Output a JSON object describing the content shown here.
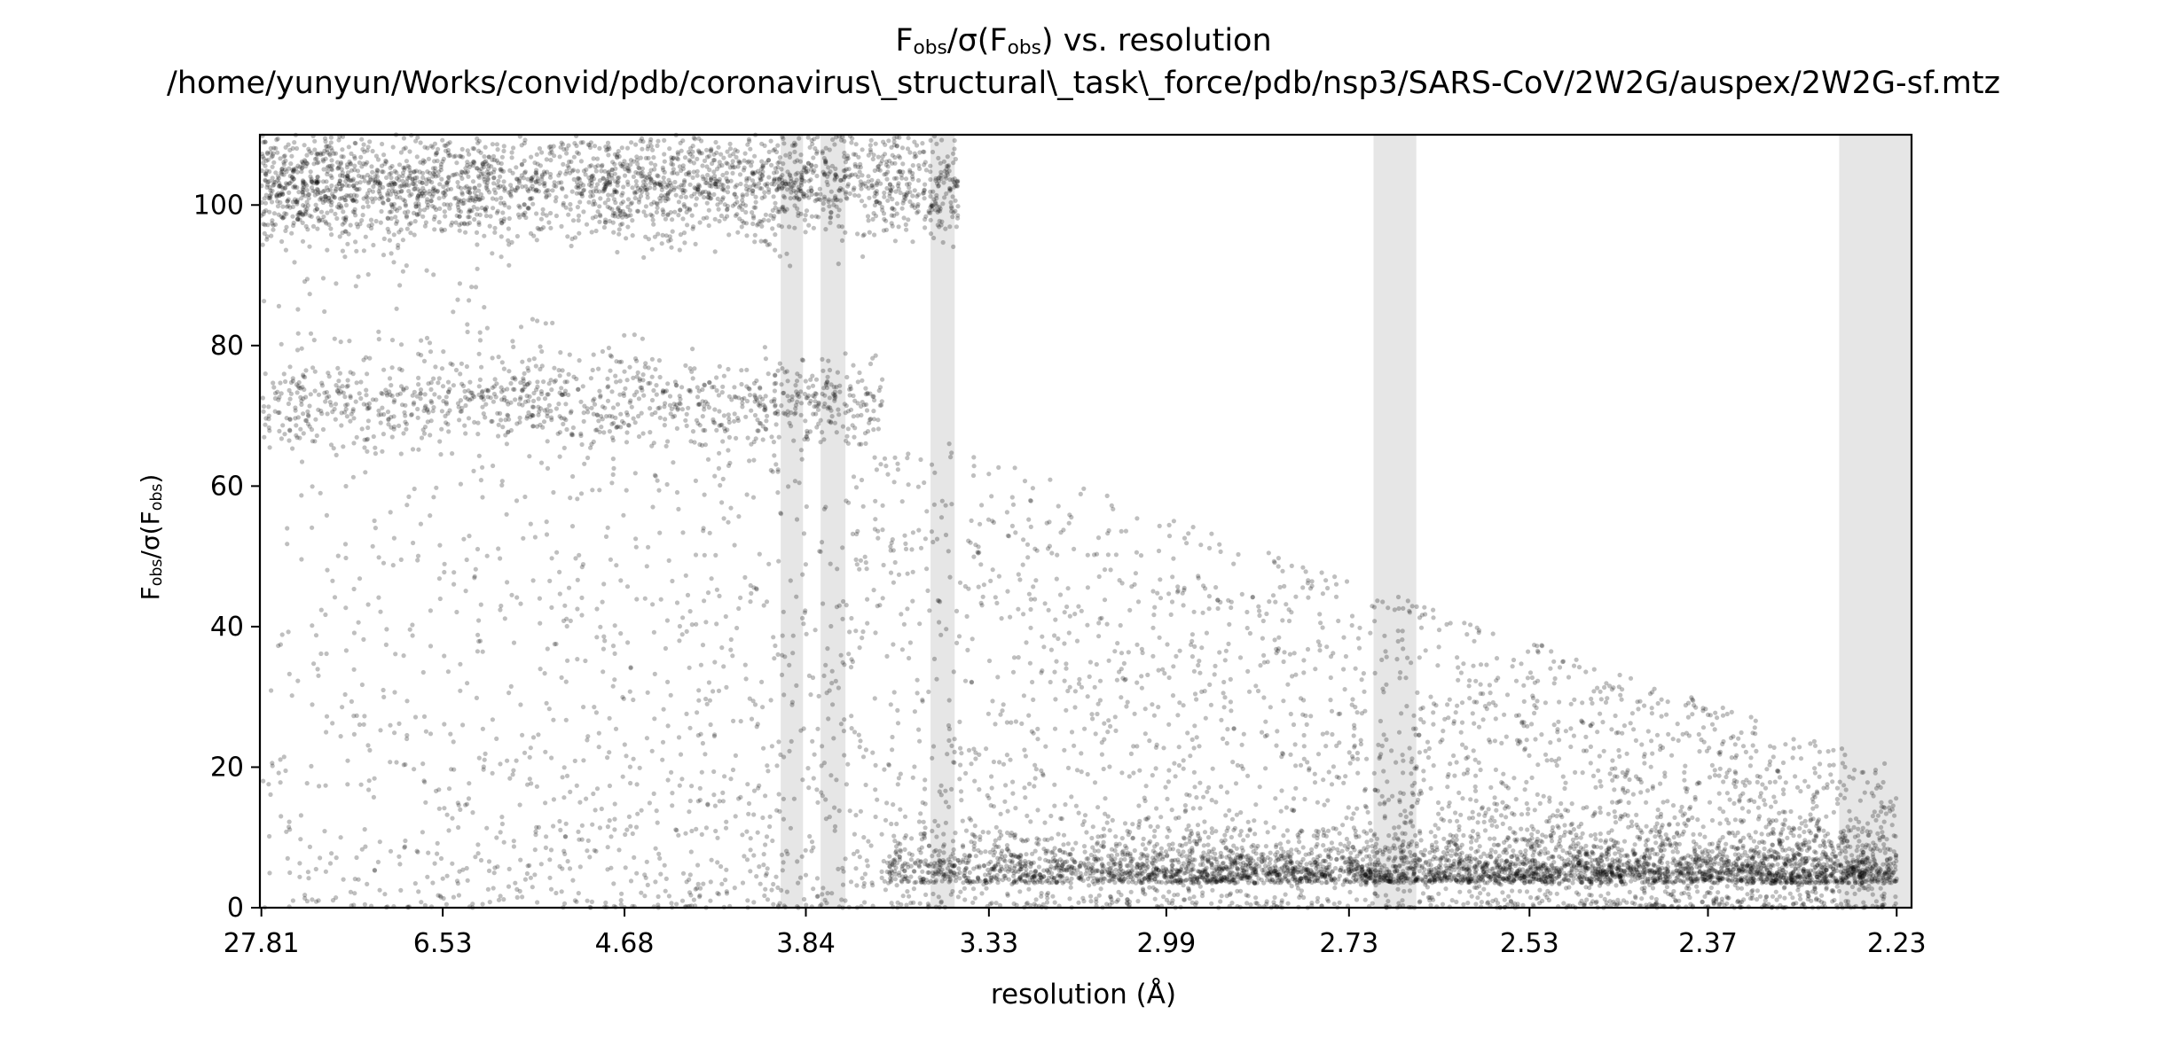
{
  "chart_data": {
    "type": "scatter",
    "title": "F_obs/σ(F_obs) vs. resolution",
    "subtitle": "/home/yunyun/Works/convid/pdb/coronavirus\\_structural\\_task\\_force/pdb/nsp3/SARS-CoV/2W2G/auspex/2W2G-sf.mtz",
    "xlabel": "resolution (Å)",
    "ylabel": "F_obs/σ(F_obs)",
    "x_scale": "1/d^2 (reciprocal-square resolution)",
    "xlim_d": [
      30.0,
      2.22
    ],
    "ylim": [
      0,
      110
    ],
    "x_tick_labels": [
      "27.81",
      "6.53",
      "4.68",
      "3.84",
      "3.33",
      "2.99",
      "2.73",
      "2.53",
      "2.37",
      "2.23"
    ],
    "y_ticks": [
      0,
      20,
      40,
      60,
      80,
      100
    ],
    "grid": false,
    "legend": "none",
    "point_color": "#000000",
    "point_alpha": 0.25,
    "highlight_color": "#e6e6e6",
    "ice_ring_bands_d": [
      [
        3.93,
        3.85
      ],
      [
        3.79,
        3.71
      ],
      [
        3.47,
        3.41
      ],
      [
        2.7,
        2.65
      ],
      [
        2.27,
        2.22
      ]
    ],
    "series": [
      {
        "description": "high band",
        "d_range": [
          27.81,
          3.4
        ],
        "y_center": 103,
        "y_spread": 4
      },
      {
        "description": "mid band",
        "d_range": [
          27.81,
          3.6
        ],
        "y_center": 72,
        "y_spread": 3
      },
      {
        "description": "diffuse cloud",
        "d_range": [
          27.81,
          2.23
        ],
        "y_max_at_low_res": 100,
        "y_max_at_high_res": 20
      },
      {
        "description": "dense baseline",
        "d_range": [
          3.6,
          2.23
        ],
        "y_center": 3.5,
        "y_spread": 1.5
      }
    ]
  }
}
